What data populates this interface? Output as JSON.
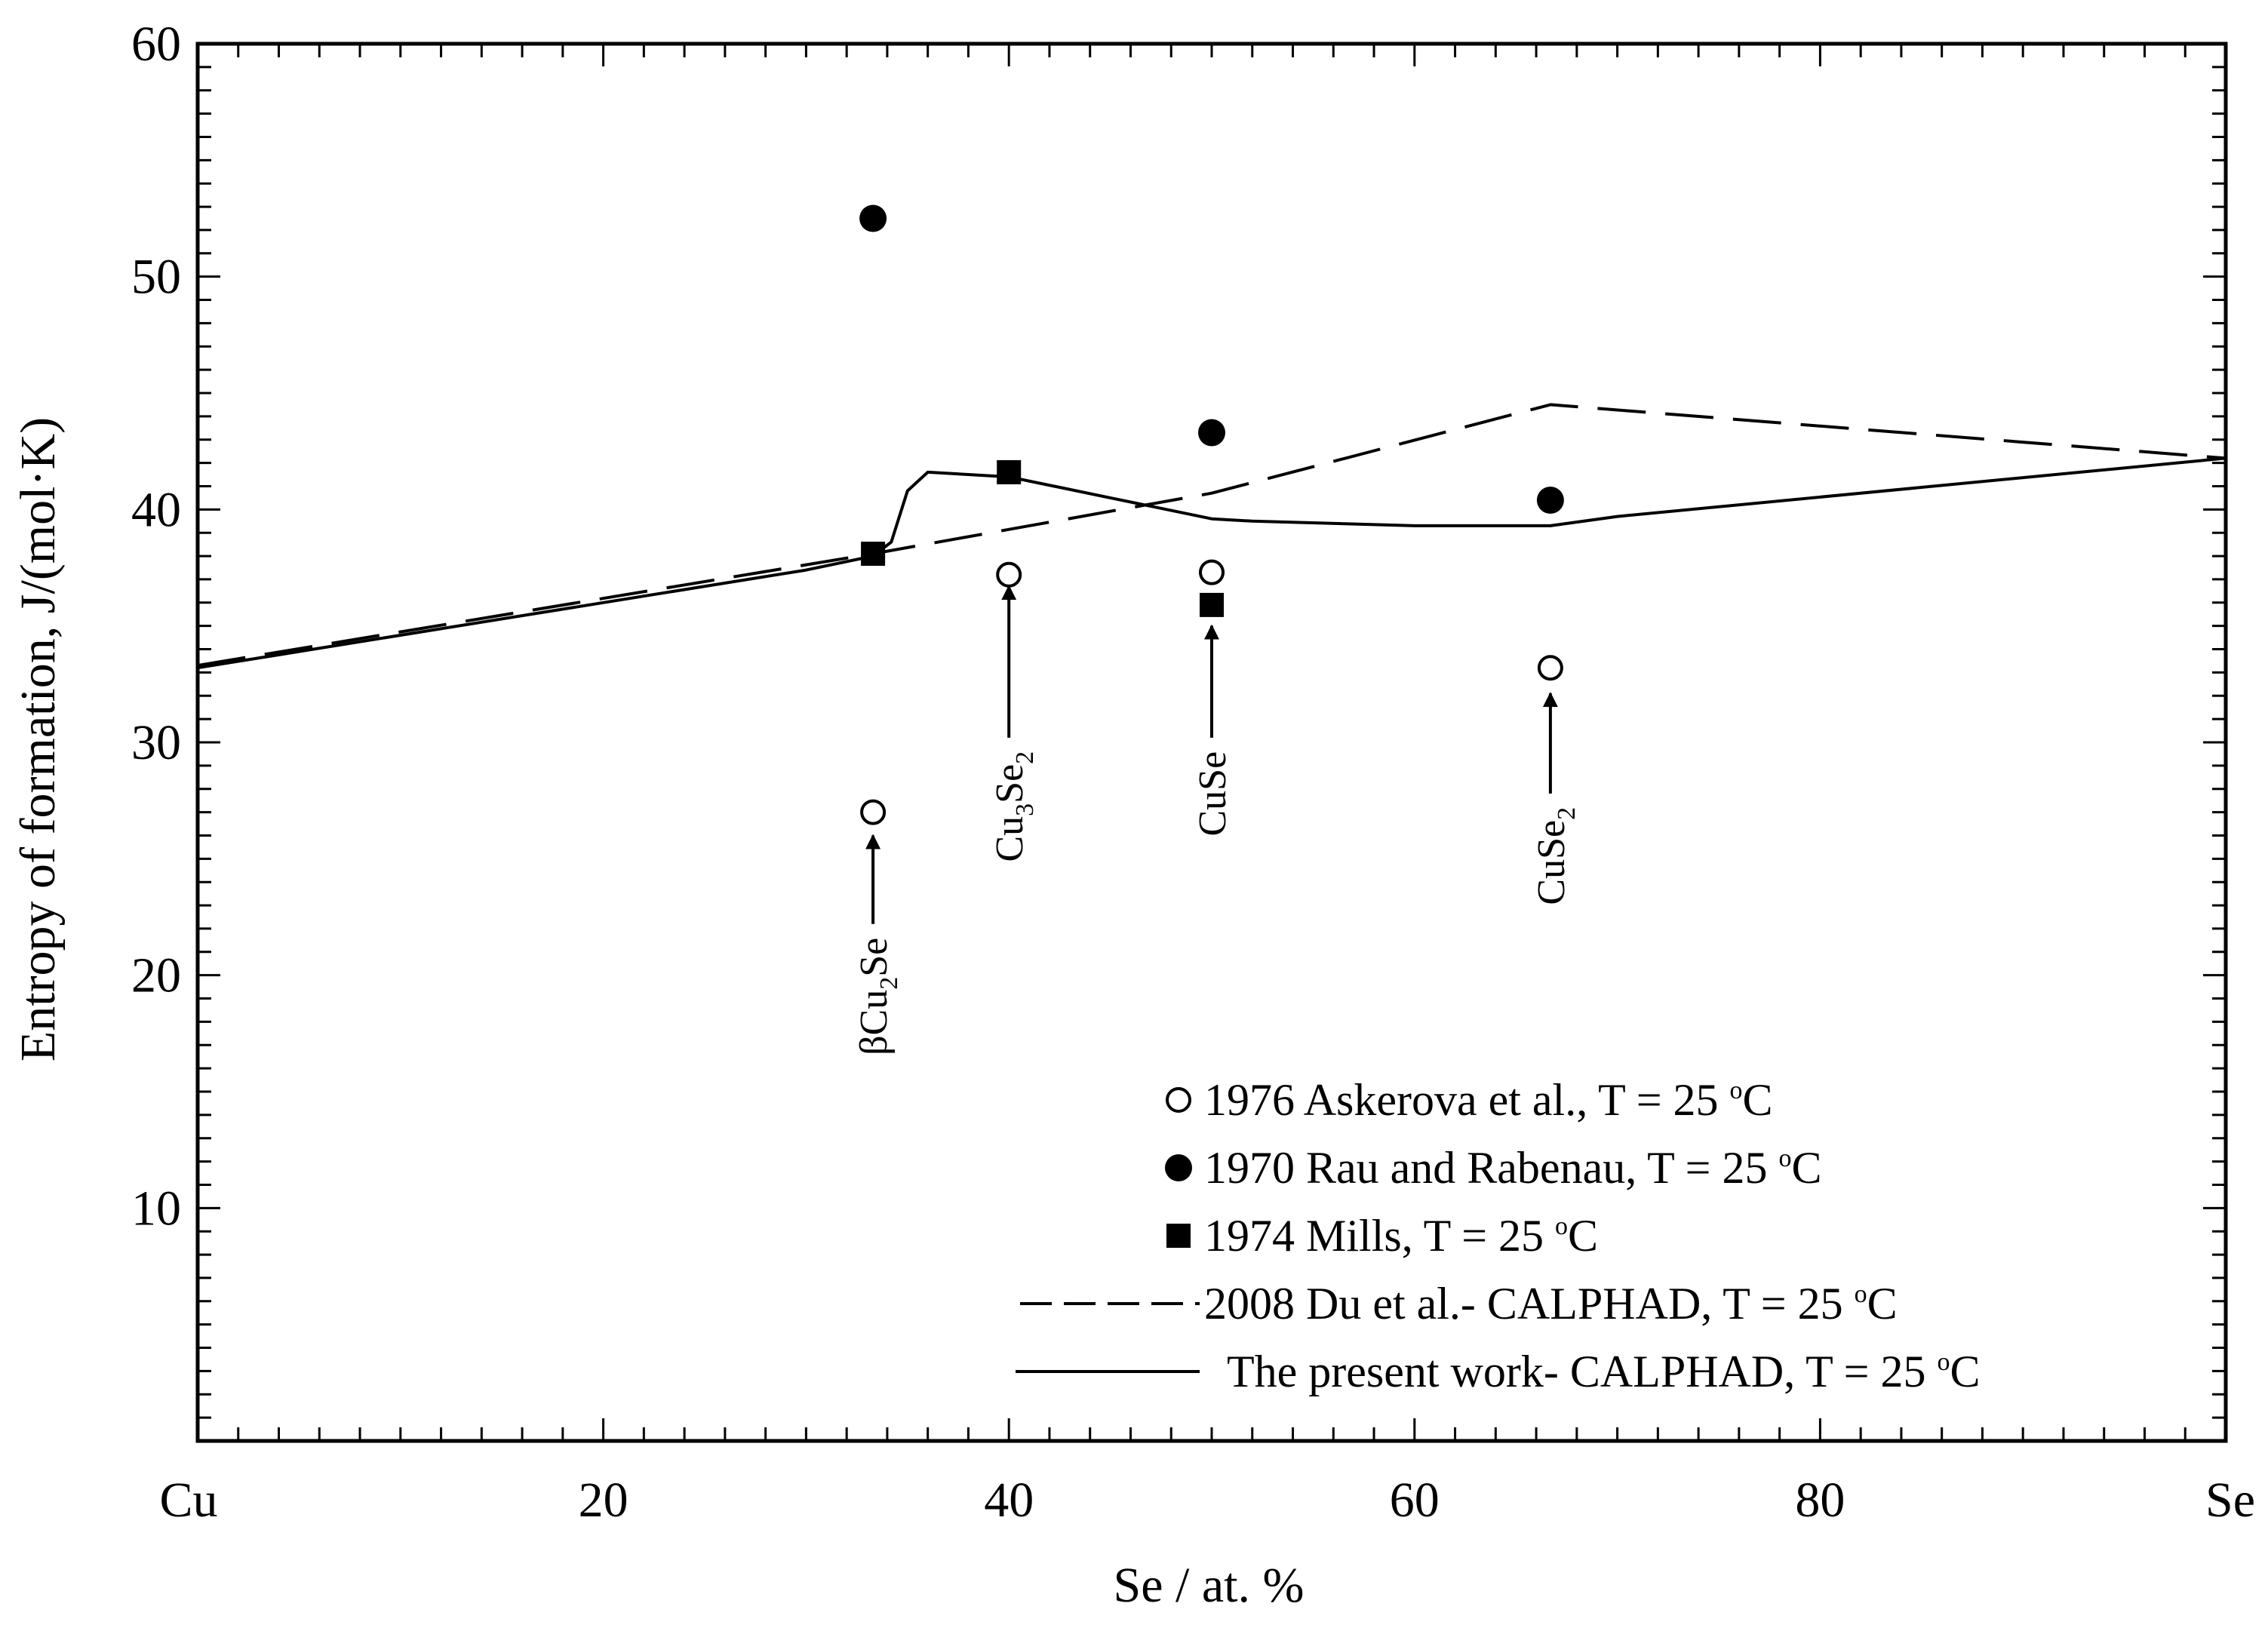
{
  "chart_data": {
    "type": "scatter",
    "title": "",
    "xlabel": "Se / at. %",
    "ylabel": "Entropy of formation, J/(mol·K)",
    "xlim": [
      0,
      100
    ],
    "ylim": [
      0,
      60
    ],
    "x_ticks": [
      {
        "value": 0,
        "label": "Cu"
      },
      {
        "value": 20,
        "label": "20"
      },
      {
        "value": 40,
        "label": "40"
      },
      {
        "value": 60,
        "label": "60"
      },
      {
        "value": 80,
        "label": "80"
      },
      {
        "value": 100,
        "label": "Se"
      }
    ],
    "y_ticks": [
      {
        "value": 10,
        "label": "10"
      },
      {
        "value": 20,
        "label": "20"
      },
      {
        "value": 30,
        "label": "30"
      },
      {
        "value": 40,
        "label": "40"
      },
      {
        "value": 50,
        "label": "50"
      },
      {
        "value": 60,
        "label": "60"
      }
    ],
    "series": [
      {
        "name": "1976 Askerova et al., T = 25 °C",
        "legend_main": "1976 Askerova et al., T = 25 ",
        "legend_sup": "o",
        "legend_tail": "C",
        "marker": "open-circle",
        "points": [
          [
            33.3,
            27.0
          ],
          [
            40.0,
            37.2
          ],
          [
            50.0,
            37.3
          ],
          [
            66.7,
            33.2
          ]
        ]
      },
      {
        "name": "1970 Rau and Rabenau, T = 25 °C",
        "legend_main": "1970 Rau and Rabenau, T = 25 ",
        "legend_sup": "o",
        "legend_tail": "C",
        "marker": "filled-circle",
        "points": [
          [
            33.3,
            52.5
          ],
          [
            50.0,
            43.3
          ],
          [
            66.7,
            40.4
          ]
        ]
      },
      {
        "name": "1974 Mills, T = 25 °C",
        "legend_main": "1974 Mills, T = 25 ",
        "legend_sup": "o",
        "legend_tail": "C",
        "marker": "filled-square",
        "points": [
          [
            33.3,
            38.1
          ],
          [
            40.0,
            41.6
          ],
          [
            50.0,
            35.9
          ]
        ]
      },
      {
        "name": "2008 Du et al.- CALPHAD, T = 25 °C",
        "legend_main": "2008 Du et al.- CALPHAD, T = 25 ",
        "legend_sup": "o",
        "legend_tail": "C",
        "marker": "dashed-line",
        "points": [
          [
            0,
            33.3
          ],
          [
            33.3,
            38.1
          ],
          [
            50.0,
            40.7
          ],
          [
            66.7,
            44.5
          ],
          [
            100,
            42.2
          ]
        ]
      },
      {
        "name": "The present work- CALPHAD, T = 25 °C",
        "legend_main": "The present work- CALPHAD, T = 25 ",
        "legend_sup": "o",
        "legend_tail": "C",
        "marker": "solid-line",
        "points": [
          [
            0,
            33.2
          ],
          [
            10,
            34.6
          ],
          [
            20,
            36.0
          ],
          [
            30,
            37.4
          ],
          [
            33.3,
            38.0
          ],
          [
            34.2,
            38.6
          ],
          [
            35.0,
            40.8
          ],
          [
            36.0,
            41.6
          ],
          [
            40.0,
            41.4
          ],
          [
            45.0,
            40.5
          ],
          [
            50.0,
            39.6
          ],
          [
            52.0,
            39.5
          ],
          [
            60.0,
            39.3
          ],
          [
            66.7,
            39.3
          ],
          [
            70.0,
            39.7
          ],
          [
            100,
            42.2
          ]
        ]
      }
    ],
    "annotations": [
      {
        "name": "beta-cu2se-label",
        "x": 33.3,
        "main": "βCu",
        "sub": "2",
        "tail": "Se",
        "arrow_from_y": 22.2,
        "arrow_to_y": 26.0
      },
      {
        "name": "cu3se2-label",
        "x": 40.0,
        "main": "Cu",
        "sub": "3",
        "mid": "Se",
        "sub2": "2",
        "arrow_from_y": 30.2,
        "arrow_to_y": 36.7
      },
      {
        "name": "cuse-label",
        "x": 50.0,
        "main": "CuSe",
        "arrow_from_y": 30.2,
        "arrow_to_y": 35.0
      },
      {
        "name": "cuse2-label",
        "x": 66.7,
        "main": "CuSe",
        "sub": "2",
        "arrow_from_y": 27.8,
        "arrow_to_y": 32.1
      }
    ],
    "legend_position": "bottom-right"
  }
}
